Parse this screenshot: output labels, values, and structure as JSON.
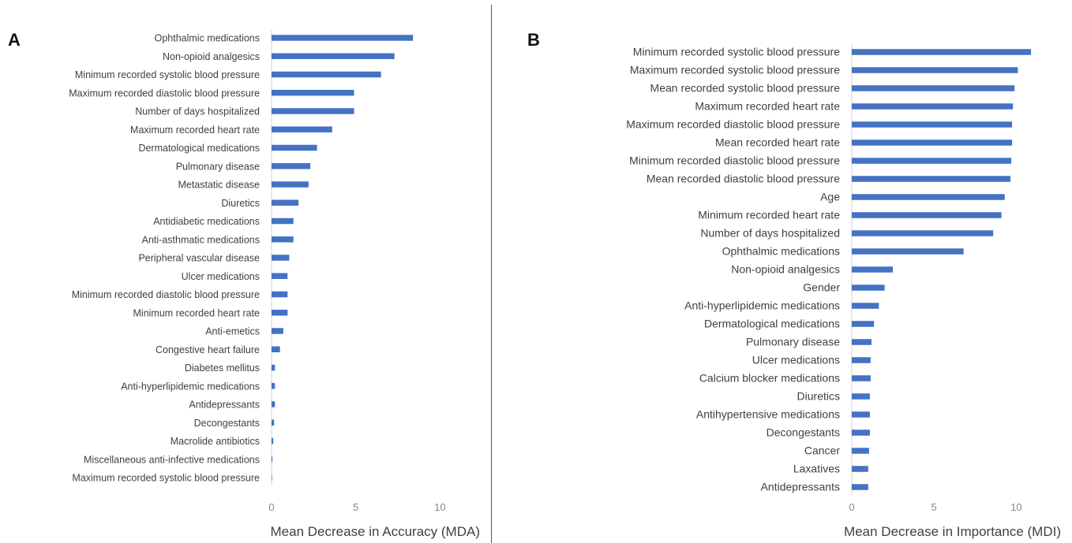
{
  "chart_data": [
    {
      "panel": "A",
      "type": "bar",
      "orientation": "horizontal",
      "xlabel": "Mean Decrease in Accuracy (MDA)",
      "xlim": [
        0,
        12
      ],
      "xticks": [
        0,
        5,
        10
      ],
      "color": "#4472C4",
      "categories": [
        "Ophthalmic medications",
        "Non-opioid analgesics",
        "Minimum recorded systolic blood pressure",
        "Maximum recorded diastolic blood pressure",
        "Number of days hospitalized",
        "Maximum recorded heart rate",
        "Dermatological medications",
        "Pulmonary disease",
        "Metastatic disease",
        "Diuretics",
        "Antidiabetic medications",
        "Anti-asthmatic medications",
        "Peripheral vascular disease",
        "Ulcer medications",
        "Minimum recorded diastolic blood pressure",
        "Minimum recorded heart rate",
        "Anti-emetics",
        "Congestive heart failure",
        "Diabetes mellitus",
        "Anti-hyperlipidemic medications",
        "Antidepressants",
        "Decongestants",
        "Macrolide antibiotics",
        "Miscellaneous anti-infective medications",
        "Maximum recorded systolic blood pressure"
      ],
      "values": [
        8.4,
        7.3,
        6.5,
        4.9,
        4.9,
        3.6,
        2.7,
        2.3,
        2.2,
        1.6,
        1.3,
        1.3,
        1.05,
        0.95,
        0.95,
        0.95,
        0.7,
        0.5,
        0.2,
        0.2,
        0.2,
        0.15,
        0.1,
        0.05,
        0.0
      ]
    },
    {
      "panel": "B",
      "type": "bar",
      "orientation": "horizontal",
      "xlabel": "Mean Decrease in Importance (MDI)",
      "xlim": [
        0,
        12
      ],
      "xticks": [
        0,
        5,
        10
      ],
      "color": "#4472C4",
      "categories": [
        "Minimum recorded systolic blood pressure",
        "Maximum recorded systolic blood pressure",
        "Mean recorded systolic blood pressure",
        "Maximum recorded heart rate",
        "Maximum recorded diastolic blood pressure",
        "Mean recorded heart rate",
        "Minimum recorded diastolic blood pressure",
        "Mean recorded diastolic blood pressure",
        "Age",
        "Minimum recorded heart rate",
        "Number of days hospitalized",
        "Ophthalmic medications",
        "Non-opioid analgesics",
        "Gender",
        "Anti-hyperlipidemic medications",
        "Dermatological medications",
        "Pulmonary disease",
        "Ulcer medications",
        "Calcium blocker medications",
        "Diuretics",
        "Antihypertensive medications",
        "Decongestants",
        "Cancer",
        "Laxatives",
        "Antidepressants"
      ],
      "values": [
        10.9,
        10.1,
        9.9,
        9.8,
        9.75,
        9.75,
        9.7,
        9.65,
        9.3,
        9.1,
        8.6,
        6.8,
        2.5,
        2.0,
        1.65,
        1.35,
        1.2,
        1.15,
        1.15,
        1.1,
        1.1,
        1.1,
        1.05,
        1.0,
        1.0
      ]
    }
  ]
}
